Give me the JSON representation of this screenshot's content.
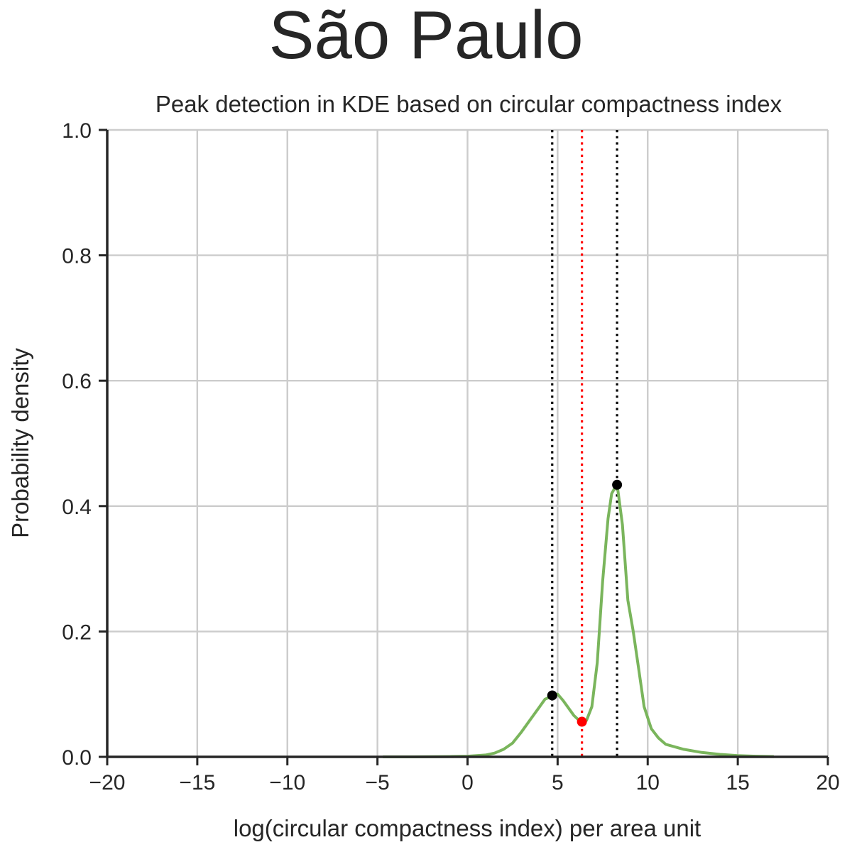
{
  "suptitle": "São Paulo",
  "chart_data": {
    "type": "line",
    "title": "Peak detection in KDE based on circular compactness index",
    "xlabel": "log(circular compactness index) per area unit",
    "ylabel": "Probability density",
    "xlim": [
      -20,
      20
    ],
    "ylim": [
      0,
      1.0
    ],
    "xticks": [
      -20,
      -15,
      -10,
      -5,
      0,
      5,
      10,
      15,
      20
    ],
    "xtick_labels": [
      "−20",
      "−15",
      "−10",
      "−5",
      "0",
      "5",
      "10",
      "15",
      "20"
    ],
    "yticks": [
      0,
      0.2,
      0.4,
      0.6,
      0.8,
      1.0
    ],
    "ytick_labels": [
      "0.0",
      "0.2",
      "0.4",
      "0.6",
      "0.8",
      "1.0"
    ],
    "grid": true,
    "series": [
      {
        "color": "#7ab55c",
        "x": [
          -4.7,
          -3,
          -1,
          0,
          1,
          1.5,
          2,
          2.5,
          3,
          3.5,
          4,
          4.3,
          4.7,
          5.0,
          5.3,
          5.6,
          5.9,
          6.2,
          6.35,
          6.6,
          6.9,
          7.2,
          7.5,
          7.8,
          8.0,
          8.3,
          8.6,
          8.9,
          9.2,
          9.5,
          9.8,
          10.2,
          10.6,
          11,
          12,
          13,
          14,
          15,
          16,
          17
        ],
        "y": [
          0.0,
          0.0,
          0.0005,
          0.001,
          0.003,
          0.006,
          0.012,
          0.022,
          0.04,
          0.06,
          0.08,
          0.092,
          0.097,
          0.1,
          0.09,
          0.078,
          0.066,
          0.058,
          0.056,
          0.058,
          0.08,
          0.15,
          0.28,
          0.38,
          0.42,
          0.435,
          0.37,
          0.25,
          0.2,
          0.14,
          0.08,
          0.045,
          0.03,
          0.02,
          0.012,
          0.007,
          0.004,
          0.002,
          0.001,
          0.0005
        ]
      }
    ],
    "peaks": [
      {
        "x": 4.7,
        "y": 0.098,
        "color": "#000000"
      },
      {
        "x": 8.3,
        "y": 0.434,
        "color": "#000000"
      }
    ],
    "valley": {
      "x": 6.35,
      "y": 0.056,
      "color": "#ff0000"
    },
    "vlines": [
      {
        "x": 4.7,
        "color": "#000000",
        "style": "dotted"
      },
      {
        "x": 6.35,
        "color": "#ff0000",
        "style": "dotted"
      },
      {
        "x": 8.3,
        "color": "#000000",
        "style": "dotted"
      }
    ]
  }
}
